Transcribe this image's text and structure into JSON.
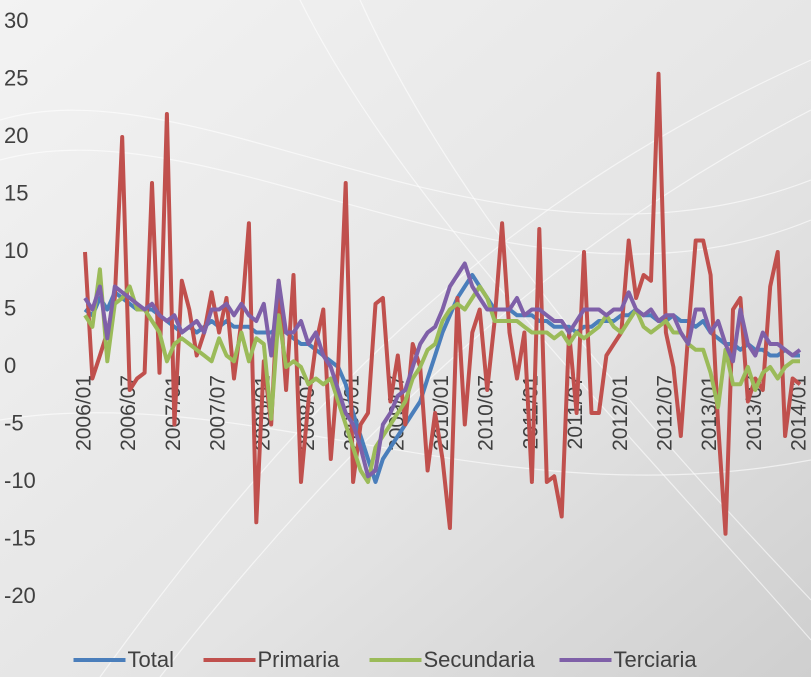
{
  "chart_data": {
    "type": "line",
    "categories": [
      "2006/01",
      null,
      null,
      null,
      null,
      null,
      "2006/07",
      null,
      null,
      null,
      null,
      null,
      "2007/01",
      null,
      null,
      null,
      null,
      null,
      "2007/07",
      null,
      null,
      null,
      null,
      null,
      "2008/01",
      null,
      null,
      null,
      null,
      null,
      "2008/07",
      null,
      null,
      null,
      null,
      null,
      "2009/01",
      null,
      null,
      null,
      null,
      null,
      "2009/07",
      null,
      null,
      null,
      null,
      null,
      "2010/01",
      null,
      null,
      null,
      null,
      null,
      "2010/07",
      null,
      null,
      null,
      null,
      null,
      "2011/01",
      null,
      null,
      null,
      null,
      null,
      "2011/07",
      null,
      null,
      null,
      null,
      null,
      "2012/01",
      null,
      null,
      null,
      null,
      null,
      "2012/07",
      null,
      null,
      null,
      null,
      null,
      "2013/01",
      null,
      null,
      null,
      null,
      null,
      "2013/07",
      null,
      null,
      null,
      null,
      null,
      "2014/01"
    ],
    "series": [
      {
        "name": "Total",
        "color": "#4a7ebb",
        "values": [
          5,
          4.5,
          6,
          5,
          6.5,
          6,
          5.5,
          5,
          5,
          5,
          4.5,
          4,
          3.5,
          3,
          3.5,
          3,
          3.5,
          4,
          3.5,
          4,
          3.5,
          3.5,
          3.5,
          3,
          3,
          3,
          3.5,
          3,
          2.5,
          2,
          2,
          1.5,
          1,
          0.5,
          0,
          -1.5,
          -4,
          -6,
          -8,
          -10,
          -8,
          -7,
          -6,
          -5,
          -4,
          -3,
          -1,
          1,
          3,
          4.5,
          6,
          7,
          8,
          7,
          6,
          5,
          5,
          5,
          4.5,
          4.5,
          4.5,
          4,
          4,
          3.5,
          3.5,
          3.5,
          3,
          3.5,
          3.5,
          4,
          4,
          4,
          4.5,
          4.5,
          5,
          4.5,
          4.5,
          4,
          4,
          4.5,
          4,
          4,
          3.5,
          4,
          3,
          2.5,
          2,
          2,
          1.5,
          2,
          1.5,
          1.5,
          1,
          1,
          1.5,
          1,
          1
        ]
      },
      {
        "name": "Primaria",
        "color": "#c0504d",
        "values": [
          10,
          -1,
          1,
          3,
          6,
          20,
          -2,
          -1,
          -0.5,
          16,
          -0.5,
          22,
          -5,
          7.5,
          5,
          1,
          3,
          6.5,
          3,
          6,
          -1,
          4,
          12.5,
          -13.5,
          0.5,
          -5,
          7.5,
          -2,
          8,
          -10,
          -3,
          2,
          5,
          -8,
          0,
          16,
          -10,
          -5,
          -4,
          5.5,
          6,
          -3,
          1,
          -5,
          2,
          0,
          -9,
          -4,
          -8,
          -14,
          6,
          -5,
          3,
          5,
          -2,
          4,
          12.5,
          3,
          -1,
          3,
          -10,
          12,
          -10,
          -9.5,
          -13,
          3,
          -4,
          10,
          -4,
          -4,
          1,
          2,
          3,
          11,
          6,
          8,
          7.5,
          25.5,
          3,
          0,
          -6,
          3,
          11,
          11,
          8,
          -5,
          -14.5,
          5,
          6,
          -3,
          -1,
          -2,
          7,
          10,
          -6,
          -1,
          -1.5
        ]
      },
      {
        "name": "Secundaria",
        "color": "#9bbb59",
        "values": [
          4.5,
          3.5,
          8.5,
          0.5,
          5.5,
          6,
          7,
          5,
          5,
          4,
          3,
          0.5,
          2,
          2.5,
          2,
          1.5,
          1,
          0.5,
          2.5,
          1,
          0.5,
          3,
          0.5,
          2.5,
          2,
          -4.5,
          4.5,
          0,
          0.5,
          0,
          -1.5,
          -1,
          -1.5,
          -1,
          -3,
          -5,
          -7,
          -9,
          -10,
          -7,
          -6,
          -5,
          -4,
          -3,
          -1,
          0,
          1.5,
          2,
          4,
          5,
          5.5,
          5,
          6,
          7,
          6,
          4,
          4,
          4,
          4,
          3.5,
          3,
          3,
          3,
          2.5,
          3,
          2,
          3,
          2.5,
          3,
          3.5,
          4.5,
          3.5,
          3,
          4,
          5,
          3.5,
          3,
          3.5,
          4,
          3,
          3,
          2,
          1.5,
          1.5,
          -0.5,
          -3.5,
          1.5,
          -1.5,
          -1.5,
          0,
          -2,
          -0.5,
          0,
          -1,
          0,
          0.5,
          0.5
        ]
      },
      {
        "name": "Terciaria",
        "color": "#7f60a8",
        "values": [
          6,
          5,
          7,
          2.5,
          7,
          6.5,
          6,
          5.5,
          5,
          5.5,
          4.5,
          4,
          4.5,
          3,
          3.5,
          4,
          3,
          5,
          5,
          5.5,
          4.5,
          5.5,
          4.5,
          4,
          5.5,
          1,
          7.5,
          3,
          3,
          4,
          2,
          3,
          1,
          0,
          -2,
          -4,
          -5,
          -7,
          -9.5,
          -9,
          -5,
          -4,
          -2.5,
          -2,
          0,
          2,
          3,
          3.5,
          5,
          7,
          8,
          9,
          7,
          6,
          5,
          5,
          5,
          5,
          6,
          4.5,
          5,
          5,
          4.5,
          4,
          4,
          3,
          4,
          5,
          5,
          5,
          4.5,
          5,
          5,
          6.5,
          5,
          4.5,
          5,
          4,
          4.5,
          4.5,
          3,
          2,
          5,
          5,
          3,
          4,
          2,
          0.5,
          5,
          2,
          1,
          3,
          2,
          2,
          1.5,
          1,
          1.5
        ]
      }
    ],
    "ylim": [
      -20,
      30
    ],
    "yticks": [
      -20,
      -15,
      -10,
      -5,
      0,
      5,
      10,
      15,
      20,
      25,
      30
    ]
  }
}
